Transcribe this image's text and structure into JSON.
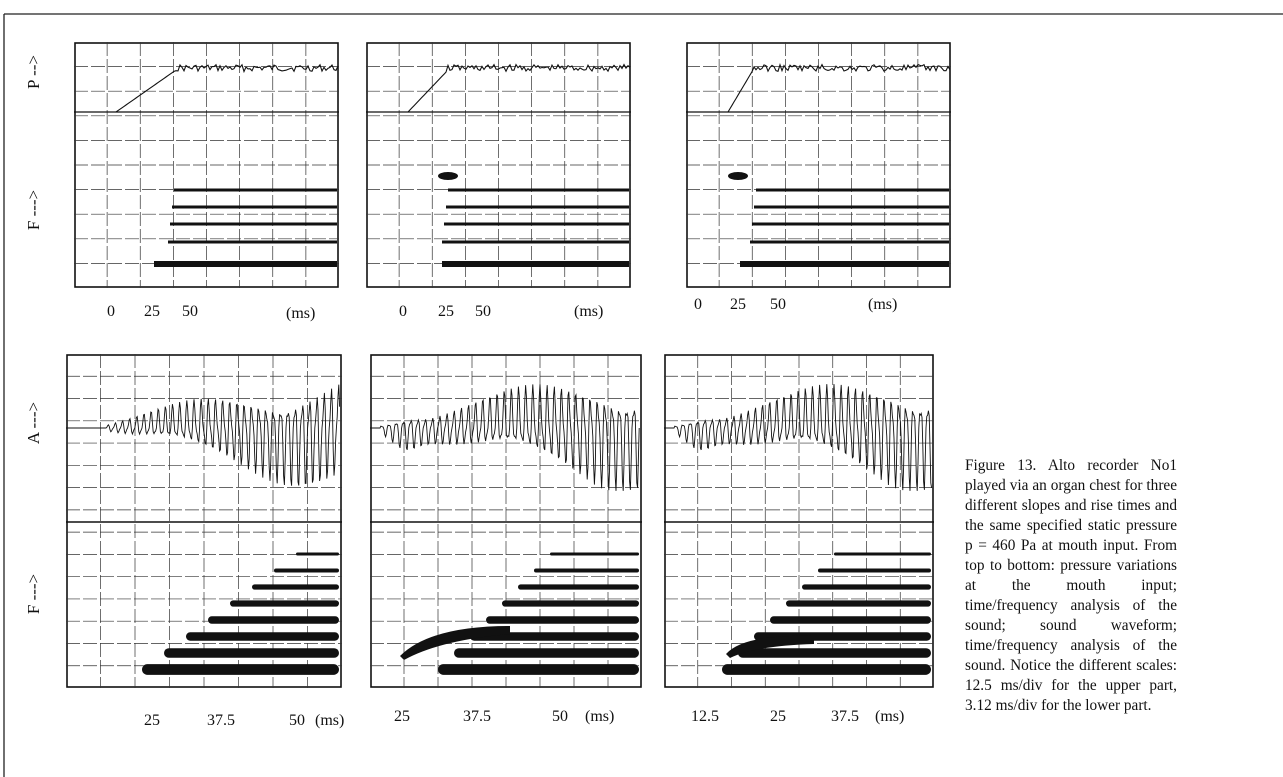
{
  "figure": {
    "caption": "Figure 13. Alto recorder No1 played via an organ chest for three different slopes and rise times and the same specified static pressure p = 460 Pa at mouth input. From top to bottom: pressure variations at the mouth input; time/frequency analysis of the sound; sound waveform; time/frequency analysis of the sound. Notice the different scales: 12.5 ms/div for the upper part, 3.12 ms/div for the lower part.",
    "top_row": {
      "ylabel_top": "P -->",
      "ylabel_bottom": "F --->",
      "unit": "(ms)",
      "panels": [
        {
          "ticks": [
            "0",
            "25",
            "50"
          ]
        },
        {
          "ticks": [
            "0",
            "25",
            "50"
          ]
        },
        {
          "ticks": [
            "0",
            "25",
            "50"
          ]
        }
      ]
    },
    "bottom_row": {
      "ylabel_top": "A --->",
      "ylabel_bottom": "F --->",
      "unit": "(ms)",
      "panels": [
        {
          "ticks": [
            "25",
            "37.5",
            "50"
          ]
        },
        {
          "ticks": [
            "25",
            "37.5",
            "50"
          ]
        },
        {
          "ticks": [
            "12.5",
            "25",
            "37.5"
          ]
        }
      ]
    }
  }
}
